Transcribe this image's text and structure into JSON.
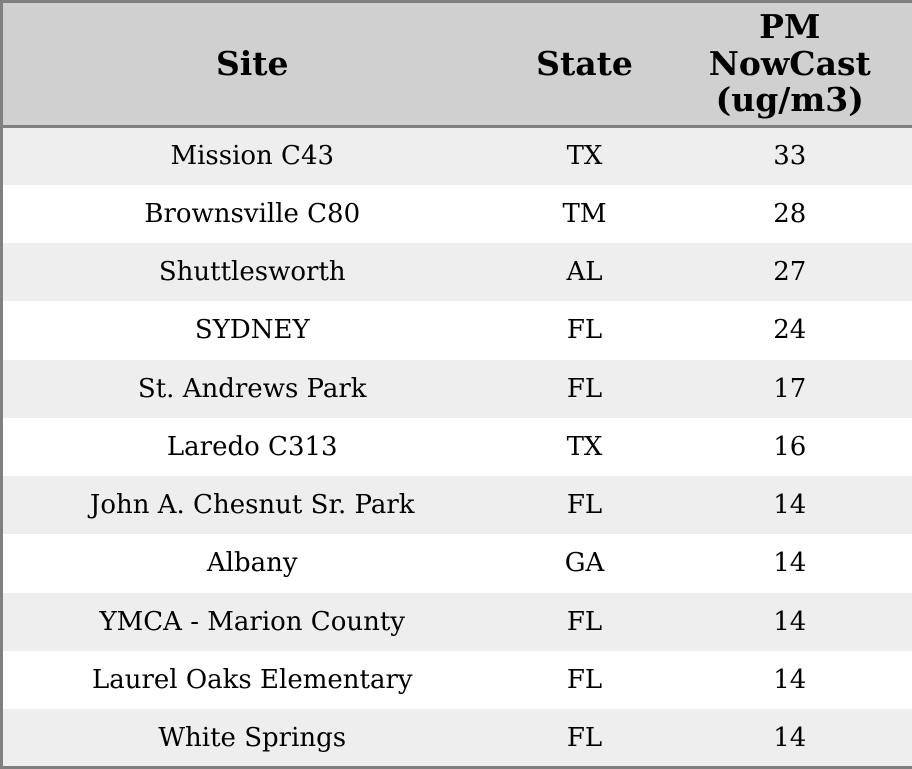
{
  "colors": {
    "header_bg": "#d0d0d0",
    "row_alt_bg": "#eeeeee",
    "row_bg": "#ffffff",
    "border": "#808080",
    "text": "#000000"
  },
  "table": {
    "columns": {
      "site": "Site",
      "state": "State",
      "pm": "PM\nNowCast\n(ug/m3)"
    },
    "rows": [
      {
        "site": "Mission C43",
        "state": "TX",
        "pm": "33"
      },
      {
        "site": "Brownsville C80",
        "state": "TM",
        "pm": "28"
      },
      {
        "site": "Shuttlesworth",
        "state": "AL",
        "pm": "27"
      },
      {
        "site": "SYDNEY",
        "state": "FL",
        "pm": "24"
      },
      {
        "site": "St. Andrews Park",
        "state": "FL",
        "pm": "17"
      },
      {
        "site": "Laredo C313",
        "state": "TX",
        "pm": "16"
      },
      {
        "site": "John A. Chesnut Sr. Park",
        "state": "FL",
        "pm": "14"
      },
      {
        "site": "Albany",
        "state": "GA",
        "pm": "14"
      },
      {
        "site": "YMCA - Marion County",
        "state": "FL",
        "pm": "14"
      },
      {
        "site": "Laurel Oaks Elementary",
        "state": "FL",
        "pm": "14"
      },
      {
        "site": "White Springs",
        "state": "FL",
        "pm": "14"
      }
    ]
  },
  "chart_data": {
    "type": "table",
    "title": "",
    "columns": [
      "Site",
      "State",
      "PM NowCast (ug/m3)"
    ],
    "rows": [
      [
        "Mission C43",
        "TX",
        33
      ],
      [
        "Brownsville C80",
        "TM",
        28
      ],
      [
        "Shuttlesworth",
        "AL",
        27
      ],
      [
        "SYDNEY",
        "FL",
        24
      ],
      [
        "St. Andrews Park",
        "FL",
        17
      ],
      [
        "Laredo C313",
        "TX",
        16
      ],
      [
        "John A. Chesnut Sr. Park",
        "FL",
        14
      ],
      [
        "Albany",
        "GA",
        14
      ],
      [
        "YMCA - Marion County",
        "FL",
        14
      ],
      [
        "Laurel Oaks Elementary",
        "FL",
        14
      ],
      [
        "White Springs",
        "FL",
        14
      ]
    ]
  }
}
